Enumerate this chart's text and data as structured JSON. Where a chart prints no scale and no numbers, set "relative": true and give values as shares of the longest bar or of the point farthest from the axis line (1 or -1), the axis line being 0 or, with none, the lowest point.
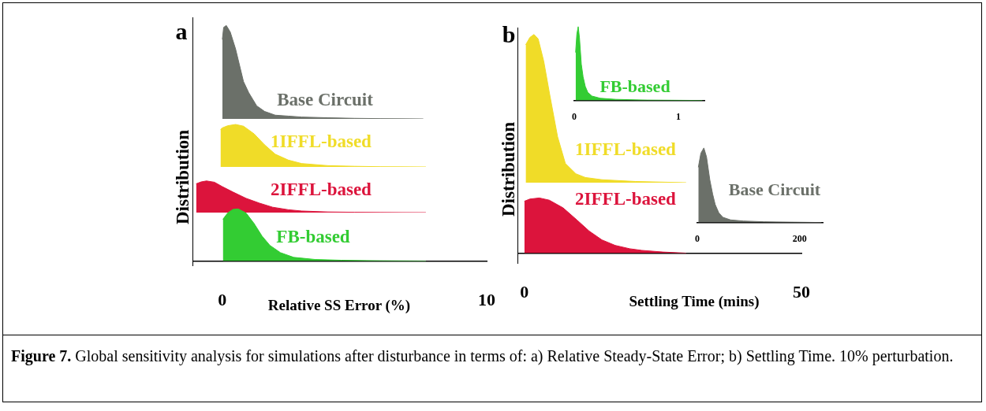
{
  "chart_data": [
    {
      "type": "area",
      "title": "a",
      "ylabel": "Distribution",
      "relative": true,
      "xlim": [
        -1.1,
        10
      ],
      "tick_labels": false,
      "annotations": [
        "Figure 7. Global sensitivity analysis for simulations after disturbance in terms of: a) Relative Steady-State Error; b) Settling Time. 10% perturbation."
      ],
      "x": [
        0,
        0.05,
        0.15,
        0.3,
        0.5,
        0.8,
        1,
        1.3,
        1.6,
        2,
        2.5,
        3,
        4,
        5,
        6,
        7.6
      ],
      "series": [
        {
          "name": "Base Circuit",
          "color": "#6b7069",
          "values": [
            0.85,
            0.98,
            1,
            0.93,
            0.75,
            0.4,
            0.28,
            0.14,
            0.08,
            0.04,
            0.03,
            0.02,
            0.012,
            0.006,
            0.003,
            0
          ]
        }
      ]
    },
    {
      "type": "area",
      "relative": true,
      "xlim": [
        -1.1,
        10
      ],
      "tick_labels": false,
      "x": [
        -0.07,
        0,
        0.2,
        0.5,
        0.8,
        1.2,
        1.6,
        2,
        2.5,
        3,
        4,
        5,
        6,
        7.7
      ],
      "series": [
        {
          "name": "1IFFL-based",
          "color": "#f0dc28",
          "values": [
            0.88,
            0.92,
            0.97,
            1,
            0.96,
            0.78,
            0.52,
            0.3,
            0.16,
            0.08,
            0.03,
            0.015,
            0.005,
            0
          ]
        }
      ]
    },
    {
      "type": "area",
      "relative": true,
      "xlim": [
        -1.1,
        10
      ],
      "tick_labels": false,
      "x": [
        -0.99,
        -0.8,
        -0.6,
        -0.3,
        0,
        0.4,
        0.9,
        1.4,
        1.9,
        2.5,
        3,
        4,
        5,
        6,
        7.7
      ],
      "series": [
        {
          "name": "2IFFL-based",
          "color": "#dc143c",
          "values": [
            0.91,
            0.97,
            1,
            0.96,
            0.82,
            0.65,
            0.45,
            0.3,
            0.17,
            0.09,
            0.05,
            0.02,
            0.01,
            0.004,
            0
          ]
        }
      ]
    },
    {
      "type": "area",
      "relative": true,
      "xlabel": "Relative SS Error (%)",
      "xlim": [
        -1.1,
        10
      ],
      "xticks": [
        0,
        10
      ],
      "tick_labels": "x",
      "x": [
        0.02,
        0.2,
        0.4,
        0.6,
        0.9,
        1.2,
        1.5,
        1.8,
        2.2,
        2.7,
        3.5,
        4.5,
        6,
        7.7
      ],
      "series": [
        {
          "name": "FB-based",
          "color": "#33cc33",
          "values": [
            0.8,
            0.92,
            0.99,
            1,
            0.92,
            0.72,
            0.48,
            0.3,
            0.16,
            0.07,
            0.03,
            0.015,
            0.005,
            0
          ]
        }
      ]
    },
    {
      "type": "area",
      "title": "b",
      "ylabel": "Distribution",
      "relative": true,
      "xlim": [
        -1.1,
        50
      ],
      "tick_labels": false,
      "x": [
        0.24,
        1,
        1.75,
        2.5,
        3.5,
        4.6,
        6,
        7.4,
        9.3,
        11,
        14,
        20,
        29.2
      ],
      "series": [
        {
          "name": "1IFFL-based",
          "color": "#f0dc28",
          "values": [
            0.93,
            0.98,
            1,
            0.97,
            0.82,
            0.59,
            0.31,
            0.13,
            0.06,
            0.035,
            0.02,
            0.008,
            0
          ]
        }
      ]
    },
    {
      "type": "area",
      "relative": true,
      "xlabel": "Settling Time (mins)",
      "xlim": [
        -1.1,
        50
      ],
      "xticks": [
        0,
        50
      ],
      "tick_labels": "x",
      "x": [
        0,
        1,
        2.7,
        4.5,
        7,
        9.5,
        11.7,
        14,
        16.4,
        19,
        21.2,
        25,
        29.2
      ],
      "series": [
        {
          "name": "2IFFL-based",
          "color": "#dc143c",
          "values": [
            0.94,
            0.98,
            1,
            0.96,
            0.82,
            0.6,
            0.4,
            0.24,
            0.14,
            0.08,
            0.05,
            0.02,
            0
          ]
        }
      ]
    },
    {
      "type": "area",
      "relative": true,
      "xlim": [
        0,
        1.25
      ],
      "xticks": [
        0,
        1
      ],
      "tick_labels": "x",
      "x": [
        0.013,
        0.025,
        0.038,
        0.05,
        0.068,
        0.085,
        0.106,
        0.13,
        0.17,
        0.25,
        0.4,
        0.7,
        1.23
      ],
      "series": [
        {
          "name": "FB-based",
          "color": "#33cc33",
          "values": [
            0.65,
            0.9,
            1,
            0.85,
            0.49,
            0.32,
            0.19,
            0.11,
            0.06,
            0.03,
            0.015,
            0.005,
            0
          ]
        }
      ]
    },
    {
      "type": "area",
      "relative": true,
      "xlim": [
        0,
        245
      ],
      "xticks": [
        0,
        200
      ],
      "tick_labels": "x",
      "x": [
        2,
        7,
        12.8,
        18,
        24.5,
        30,
        35,
        42,
        50,
        65,
        90,
        130,
        180,
        242
      ],
      "series": [
        {
          "name": "Base Circuit",
          "color": "#6b7069",
          "values": [
            0.74,
            0.93,
            1,
            0.88,
            0.57,
            0.38,
            0.24,
            0.13,
            0.07,
            0.035,
            0.02,
            0.01,
            0.005,
            0
          ]
        }
      ]
    }
  ]
}
